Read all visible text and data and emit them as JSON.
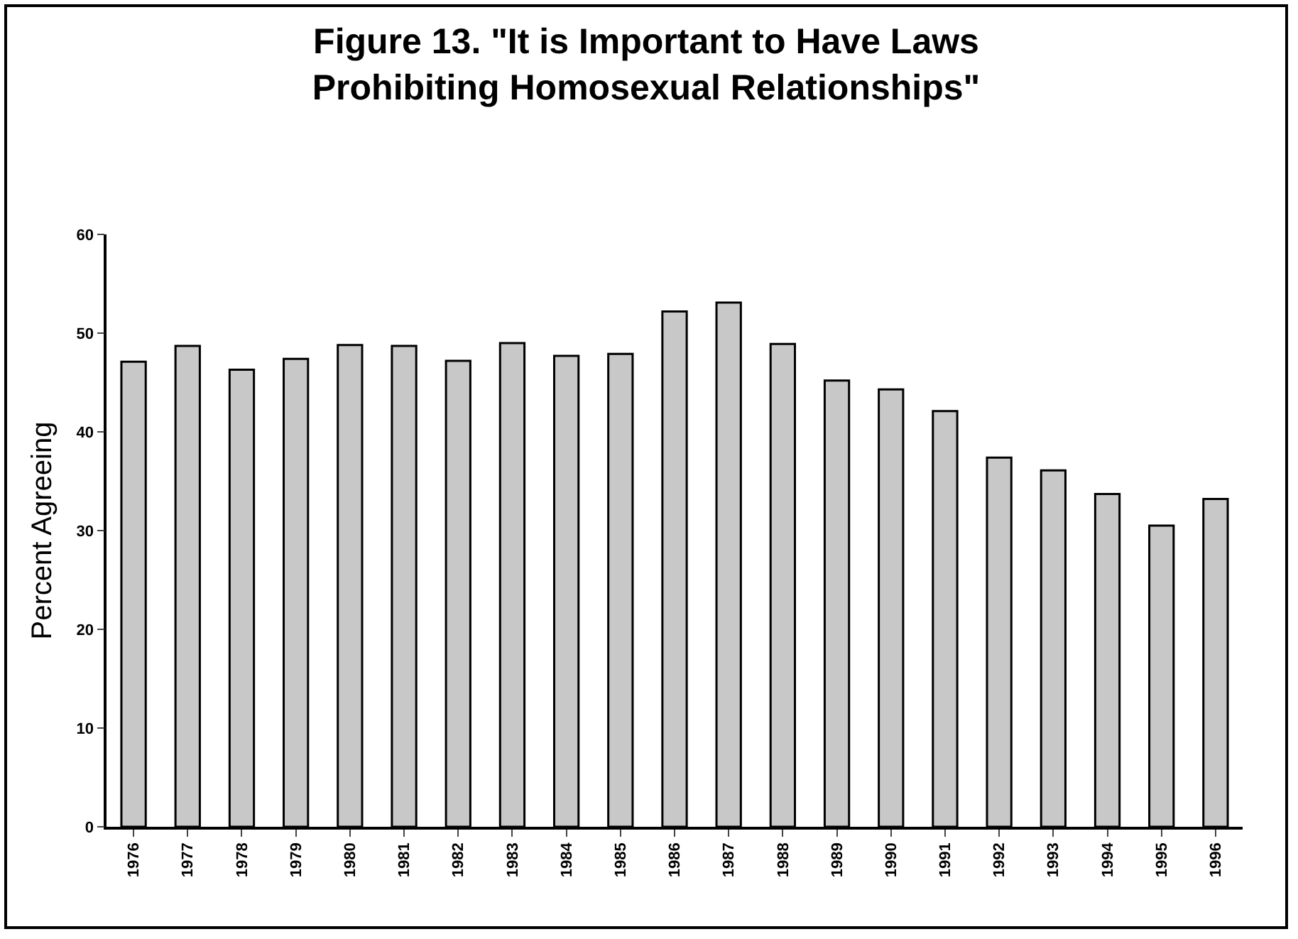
{
  "chart_data": {
    "type": "bar",
    "title": "Figure 13. \"It is Important to Have Laws Prohibiting Homosexual Relationships\"",
    "ylabel": "Percent Agreeing",
    "categories": [
      "1976",
      "1977",
      "1978",
      "1979",
      "1980",
      "1981",
      "1982",
      "1983",
      "1984",
      "1985",
      "1986",
      "1987",
      "1988",
      "1989",
      "1990",
      "1991",
      "1992",
      "1993",
      "1994",
      "1995",
      "1996"
    ],
    "values": [
      47.1,
      48.7,
      46.3,
      47.4,
      48.8,
      48.7,
      47.2,
      49.0,
      47.7,
      47.9,
      52.2,
      53.1,
      48.9,
      45.2,
      44.3,
      42.1,
      37.4,
      36.1,
      33.7,
      30.5,
      33.2
    ],
    "color": "#c8c8c8",
    "ylim": [
      0,
      60
    ],
    "yticks": [
      0,
      10,
      20,
      30,
      40,
      50,
      60
    ],
    "grid": false
  }
}
